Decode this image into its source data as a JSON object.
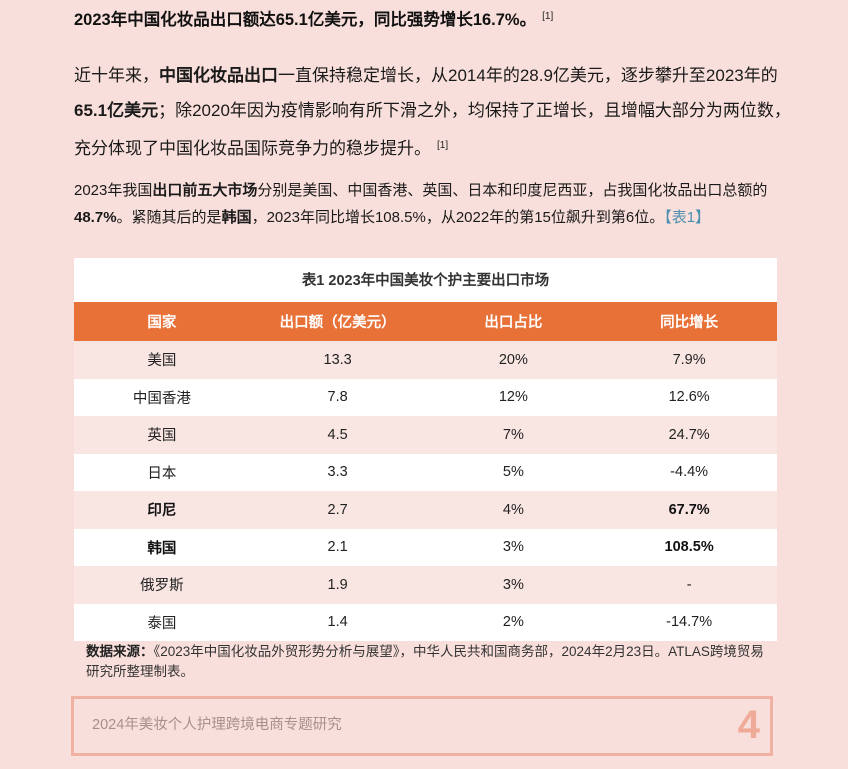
{
  "headline": {
    "text": "2023年中国化妆品出口额达65.1亿美元，同比强势增长16.7%。",
    "ref": "[1]"
  },
  "intro": {
    "p1": "近十年来，",
    "b1": "中国化妆品出口",
    "p2": "一直保持稳定增长，从2014年的28.9亿美元，逐步攀升至2023年的",
    "b2": "65.1亿美元",
    "p3": "；除2020年因为疫情影响有所下滑之外，均保持了正增长，且增幅大部分为两位数，充分体现了中国化妆品国际竞争力的稳步提升。",
    "ref": "[1]"
  },
  "para2": {
    "p1": "2023年我国",
    "b1": "出口前五大市场",
    "p2": "分别是美国、中国香港、英国、日本和印度尼西亚，占我国化妆品出口总额的",
    "b2": "48.7%",
    "p3": "。紧随其后的是",
    "b3": "韩国",
    "p4": "，2023年同比增长108.5%，从2022年的第15位飙升到第6位。",
    "link": "【表1】"
  },
  "table": {
    "title": "表1 2023年中国美妆个护主要出口市场",
    "headers": [
      "国家",
      "出口额（亿美元）",
      "出口占比",
      "同比增长"
    ],
    "rows": [
      {
        "country": "美国",
        "amount": "13.3",
        "share": "20%",
        "growth": "7.9%"
      },
      {
        "country": "中国香港",
        "amount": "7.8",
        "share": "12%",
        "growth": "12.6%"
      },
      {
        "country": "英国",
        "amount": "4.5",
        "share": "7%",
        "growth": "24.7%"
      },
      {
        "country": "日本",
        "amount": "3.3",
        "share": "5%",
        "growth": "-4.4%"
      },
      {
        "country": "印尼",
        "amount": "2.7",
        "share": "4%",
        "growth": "67.7%"
      },
      {
        "country": "韩国",
        "amount": "2.1",
        "share": "3%",
        "growth": "108.5%"
      },
      {
        "country": "俄罗斯",
        "amount": "1.9",
        "share": "3%",
        "growth": "-"
      },
      {
        "country": "泰国",
        "amount": "1.4",
        "share": "2%",
        "growth": "-14.7%"
      }
    ]
  },
  "source": {
    "label": "数据来源：",
    "text": "《2023年中国化妆品外贸形势分析与展望》，中华人民共和国商务部，2024年2月23日。ATLAS跨境贸易研究所整理制表。"
  },
  "footer": {
    "title": "2024年美妆个人护理跨境电商专题研究",
    "page": "4"
  },
  "colors": {
    "background": "#f9dfdb",
    "table_header": "#e87137",
    "row_alt": "#f9e6e3",
    "footer_border": "#efb2a2",
    "page_number": "#f0ab98",
    "link": "#4a8fb0"
  }
}
